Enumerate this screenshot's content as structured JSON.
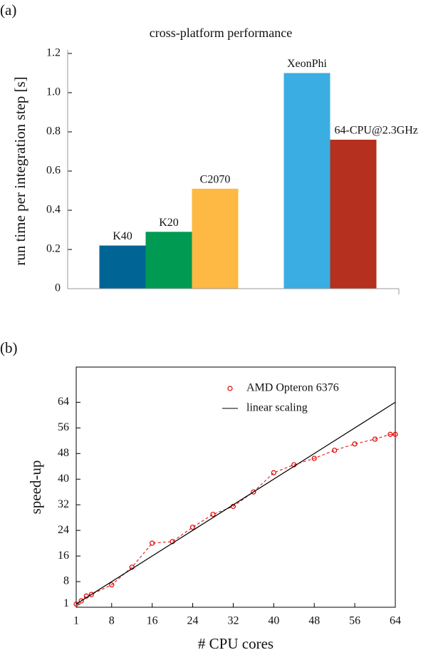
{
  "chart_data": [
    {
      "type": "bar",
      "panel_label": "(a)",
      "title": "cross-platform performance",
      "y_label": "run time per integration step [s]",
      "categories": [
        "K40",
        "K20",
        "C2070",
        "XeonPhi",
        "64-CPU@2.3GHz"
      ],
      "values": [
        0.22,
        0.29,
        0.51,
        1.1,
        0.76
      ],
      "colors": [
        "#006494",
        "#009a53",
        "#fdb943",
        "#3aaee2",
        "#b5301e"
      ],
      "ylim": [
        0,
        1.2
      ],
      "yticks": [
        0,
        0.2,
        0.4,
        0.6,
        0.8,
        {
          "value": 1,
          "label": "1.0"
        },
        1.2
      ]
    },
    {
      "type": "line",
      "panel_label": "(b)",
      "x_label": "# CPU cores",
      "y_label": "speed-up",
      "legend": "upper right",
      "xlim": [
        1,
        64
      ],
      "xticks": [
        1,
        8,
        16,
        24,
        32,
        40,
        48,
        56,
        64
      ],
      "ylim": [
        0,
        75
      ],
      "yticks": [
        1,
        8,
        16,
        24,
        32,
        40,
        48,
        56,
        64
      ],
      "series": [
        {
          "name": "AMD Opteron 6376",
          "color": "#e00000",
          "marker": "circle",
          "dashed": true,
          "x": [
            1,
            2,
            3,
            4,
            8,
            12,
            16,
            20,
            24,
            28,
            32,
            36,
            40,
            44,
            48,
            52,
            56,
            60,
            63,
            64
          ],
          "values": [
            1,
            2,
            3.5,
            4,
            7,
            12.5,
            20,
            20.5,
            25,
            29,
            31.5,
            36,
            42,
            44.5,
            46.5,
            49,
            51,
            52.5,
            54,
            54
          ]
        },
        {
          "name": "linear scaling",
          "color": "#000000",
          "marker": null,
          "dashed": false,
          "x": [
            1,
            64
          ],
          "values": [
            1,
            64
          ]
        }
      ]
    }
  ]
}
